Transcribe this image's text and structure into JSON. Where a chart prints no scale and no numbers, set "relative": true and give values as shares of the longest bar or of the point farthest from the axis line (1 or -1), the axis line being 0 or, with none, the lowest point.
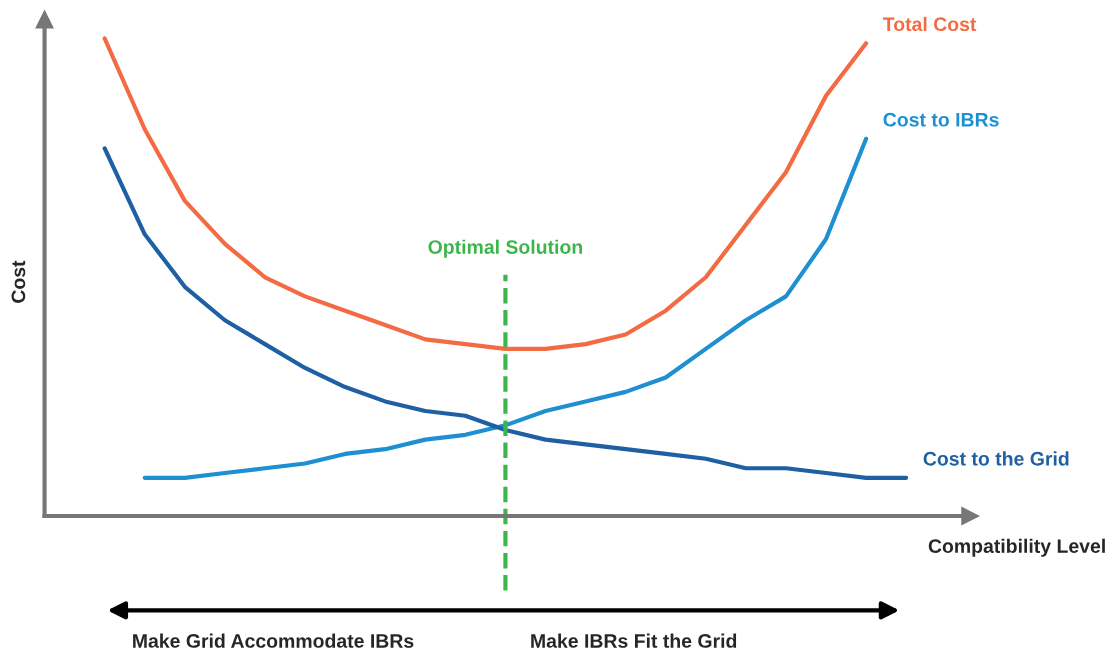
{
  "chart_data": {
    "type": "line",
    "relative": true,
    "xlabel": "Compatibility Level",
    "ylabel": "Cost",
    "categories": [
      null,
      null,
      null,
      null,
      null,
      null,
      null,
      null,
      null,
      null,
      null,
      null,
      null,
      null,
      null,
      null,
      null,
      null,
      null,
      null,
      null
    ],
    "series": [
      {
        "name": "Total Cost",
        "color": "#f26b43",
        "values": [
          1.0,
          0.81,
          0.66,
          0.57,
          0.5,
          0.46,
          0.43,
          0.4,
          0.37,
          0.36,
          0.35,
          0.35,
          0.36,
          0.38,
          0.43,
          0.5,
          0.61,
          0.72,
          0.88,
          0.99,
          null
        ]
      },
      {
        "name": "Cost to IBRs",
        "color": "#1e8fd0",
        "values": [
          null,
          0.08,
          0.08,
          0.09,
          0.1,
          0.11,
          0.13,
          0.14,
          0.16,
          0.17,
          0.19,
          0.22,
          0.24,
          0.26,
          0.29,
          0.35,
          0.41,
          0.46,
          0.58,
          0.79,
          null
        ]
      },
      {
        "name": "Cost to the Grid",
        "color": "#1f5fa3",
        "values": [
          0.77,
          0.59,
          0.48,
          0.41,
          0.36,
          0.31,
          0.27,
          0.24,
          0.22,
          0.21,
          0.18,
          0.16,
          0.15,
          0.14,
          0.13,
          0.12,
          0.1,
          0.1,
          0.09,
          0.08,
          0.08
        ]
      }
    ],
    "annotations": [
      "Optimal Solution",
      "Make Grid Accommodate IBRs",
      "Make IBRs Fit the Grid"
    ],
    "marker": "none",
    "line_style": "solid"
  }
}
